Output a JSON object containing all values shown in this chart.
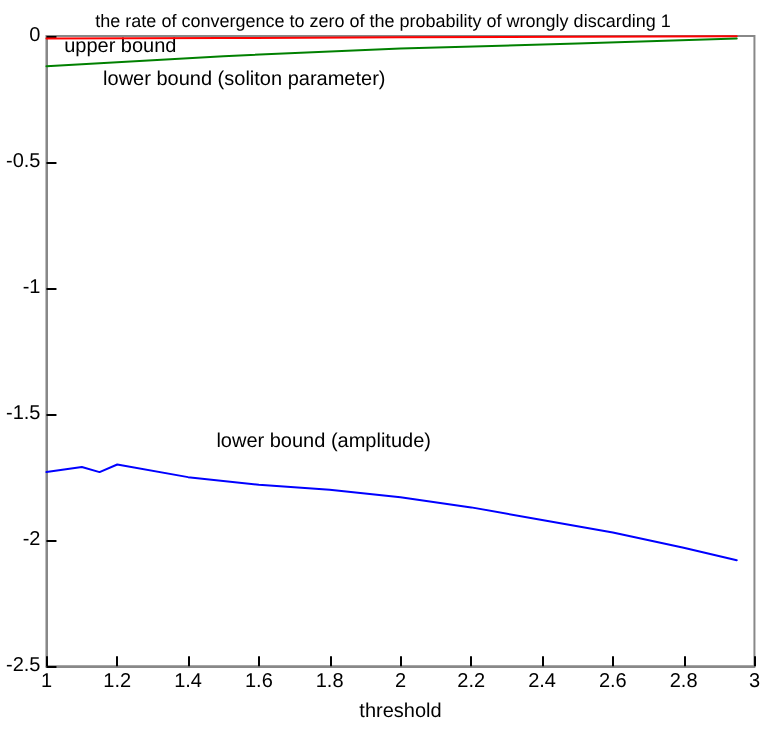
{
  "chart_data": {
    "type": "line",
    "title": "the rate of convergence to zero of the probability of wrongly discarding 1",
    "xlabel": "threshold",
    "xlim": [
      1,
      3
    ],
    "xticks": [
      1,
      1.2,
      1.4,
      1.6,
      1.8,
      2,
      2.2,
      2.4,
      2.6,
      2.8,
      3
    ],
    "ylim": [
      -2.5,
      0
    ],
    "yticks": [
      -2.5,
      -2,
      -1.5,
      -1,
      -0.5,
      0
    ],
    "grid": false,
    "marker": "none",
    "line_style": "solid",
    "series": [
      {
        "color": "#ff0000",
        "x": [
          1,
          1.5,
          2,
          2.5,
          2.95
        ],
        "values": [
          -0.01,
          -0.008,
          -0.005,
          -0.003,
          -0.001
        ]
      },
      {
        "color": "#008000",
        "x": [
          1,
          1.5,
          2,
          2.5,
          2.95
        ],
        "values": [
          -0.12,
          -0.08,
          -0.05,
          -0.03,
          -0.01
        ]
      },
      {
        "color": "#0000ff",
        "x": [
          1,
          1.1,
          1.15,
          1.2,
          1.4,
          1.6,
          1.8,
          2,
          2.2,
          2.4,
          2.6,
          2.8,
          2.95
        ],
        "values": [
          -1.73,
          -1.71,
          -1.73,
          -1.7,
          -1.75,
          -1.78,
          -1.8,
          -1.83,
          -1.87,
          -1.92,
          -1.97,
          -2.03,
          -2.08
        ]
      }
    ],
    "annotations": [
      "upper bound",
      "lower bound (soliton parameter)",
      "lower bound (amplitude)"
    ]
  }
}
